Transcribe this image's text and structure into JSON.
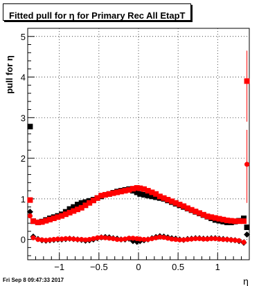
{
  "title": "Fitted pull for  η for Primary Rec All EtapT",
  "footer": "Fri Sep  8 09:47:33 2017",
  "chart_data": {
    "type": "scatter",
    "title": "Fitted pull for  η for Primary Rec All EtapT",
    "xlabel": "η",
    "ylabel": "pull for  η",
    "xlim": [
      -1.4,
      1.4
    ],
    "ylim": [
      -0.5,
      5.2
    ],
    "grid": true,
    "xticks": [
      -1,
      -0.5,
      0,
      0.5,
      1
    ],
    "xtick_labels": [
      "−1",
      "−0.5",
      "0",
      "0.5",
      "1"
    ],
    "yticks": [
      0,
      1,
      2,
      3,
      4,
      5
    ],
    "ytick_labels": [
      "0",
      "1",
      "2",
      "3",
      "4",
      "5"
    ],
    "colors": {
      "series_a": "#000000",
      "series_b": "#ff0000"
    },
    "series": [
      {
        "marker": "square",
        "color": "#000000",
        "x": [
          -1.37,
          -1.33,
          -1.27,
          -1.22,
          -1.17,
          -1.12,
          -1.07,
          -1.02,
          -0.97,
          -0.92,
          -0.87,
          -0.82,
          -0.77,
          -0.72,
          -0.67,
          -0.62,
          -0.57,
          -0.52,
          -0.47,
          -0.42,
          -0.37,
          -0.32,
          -0.27,
          -0.22,
          -0.17,
          -0.12,
          -0.07,
          -0.02,
          0.02,
          0.07,
          0.12,
          0.17,
          0.22,
          0.27,
          0.32,
          0.37,
          0.42,
          0.47,
          0.52,
          0.57,
          0.62,
          0.67,
          0.72,
          0.77,
          0.82,
          0.87,
          0.92,
          0.97,
          1.02,
          1.07,
          1.12,
          1.17,
          1.22,
          1.27,
          1.33,
          1.37
        ],
        "y": [
          2.78,
          0.45,
          0.42,
          0.44,
          0.48,
          0.52,
          0.55,
          0.58,
          0.62,
          0.68,
          0.75,
          0.8,
          0.86,
          0.9,
          0.92,
          0.95,
          0.98,
          1.02,
          1.06,
          1.1,
          1.12,
          1.15,
          1.18,
          1.2,
          1.22,
          1.24,
          1.2,
          1.16,
          1.12,
          1.1,
          1.08,
          1.06,
          1.04,
          1.02,
          1.0,
          0.96,
          0.92,
          0.88,
          0.84,
          0.8,
          0.76,
          0.72,
          0.68,
          0.64,
          0.6,
          0.56,
          0.52,
          0.48,
          0.46,
          0.44,
          0.42,
          0.42,
          0.44,
          0.46,
          0.52,
          0.3
        ]
      },
      {
        "marker": "diamond",
        "color": "#000000",
        "x": [
          -1.37,
          -1.33,
          -1.27,
          -1.22,
          -1.17,
          -1.12,
          -1.07,
          -1.02,
          -0.97,
          -0.92,
          -0.87,
          -0.82,
          -0.77,
          -0.72,
          -0.67,
          -0.62,
          -0.57,
          -0.52,
          -0.47,
          -0.42,
          -0.37,
          -0.32,
          -0.27,
          -0.22,
          -0.17,
          -0.12,
          -0.07,
          -0.02,
          0.02,
          0.07,
          0.12,
          0.17,
          0.22,
          0.27,
          0.32,
          0.37,
          0.42,
          0.47,
          0.52,
          0.57,
          0.62,
          0.67,
          0.72,
          0.77,
          0.82,
          0.87,
          0.92,
          0.97,
          1.02,
          1.07,
          1.12,
          1.17,
          1.22,
          1.27,
          1.33,
          1.37
        ],
        "y": [
          0.68,
          0.07,
          0.01,
          -0.02,
          -0.03,
          -0.02,
          -0.01,
          0.0,
          0.0,
          0.01,
          0.02,
          0.01,
          0.0,
          -0.01,
          -0.03,
          -0.02,
          0.0,
          0.03,
          0.05,
          0.06,
          0.05,
          0.03,
          0.02,
          0.0,
          0.0,
          0.02,
          -0.04,
          -0.06,
          -0.04,
          -0.02,
          0.0,
          0.03,
          0.06,
          0.08,
          0.07,
          0.05,
          0.03,
          0.02,
          0.0,
          -0.01,
          0.01,
          0.02,
          0.03,
          0.03,
          0.02,
          0.02,
          0.03,
          0.03,
          0.02,
          0.01,
          0.0,
          -0.01,
          -0.02,
          -0.04,
          -0.08,
          0.12
        ]
      },
      {
        "marker": "square",
        "color": "#ff0000",
        "x": [
          -1.37,
          -1.33,
          -1.27,
          -1.22,
          -1.17,
          -1.12,
          -1.07,
          -1.02,
          -0.97,
          -0.92,
          -0.87,
          -0.82,
          -0.77,
          -0.72,
          -0.67,
          -0.62,
          -0.57,
          -0.52,
          -0.47,
          -0.42,
          -0.37,
          -0.32,
          -0.27,
          -0.22,
          -0.17,
          -0.12,
          -0.07,
          -0.02,
          0.02,
          0.07,
          0.12,
          0.17,
          0.22,
          0.27,
          0.32,
          0.37,
          0.42,
          0.47,
          0.52,
          0.57,
          0.62,
          0.67,
          0.72,
          0.77,
          0.82,
          0.87,
          0.92,
          0.97,
          1.02,
          1.07,
          1.12,
          1.17,
          1.22,
          1.27,
          1.33,
          1.37
        ],
        "y": [
          0.97,
          0.45,
          0.42,
          0.43,
          0.46,
          0.49,
          0.52,
          0.55,
          0.58,
          0.62,
          0.66,
          0.7,
          0.74,
          0.78,
          0.84,
          0.9,
          0.96,
          1.02,
          1.08,
          1.1,
          1.12,
          1.14,
          1.16,
          1.18,
          1.2,
          1.22,
          1.25,
          1.27,
          1.26,
          1.24,
          1.2,
          1.16,
          1.12,
          1.06,
          1.02,
          0.98,
          0.94,
          0.9,
          0.86,
          0.82,
          0.77,
          0.73,
          0.69,
          0.65,
          0.61,
          0.57,
          0.55,
          0.53,
          0.51,
          0.49,
          0.47,
          0.46,
          0.45,
          0.45,
          0.45,
          3.9
        ],
        "error_bars": [
          {
            "x": 1.37,
            "low": 2.9,
            "high": 4.65
          }
        ]
      },
      {
        "marker": "circle",
        "color": "#ff0000",
        "x": [
          -1.37,
          -1.33,
          -1.27,
          -1.22,
          -1.17,
          -1.12,
          -1.07,
          -1.02,
          -0.97,
          -0.92,
          -0.87,
          -0.82,
          -0.77,
          -0.72,
          -0.67,
          -0.62,
          -0.57,
          -0.52,
          -0.47,
          -0.42,
          -0.37,
          -0.32,
          -0.27,
          -0.22,
          -0.17,
          -0.12,
          -0.07,
          -0.02,
          0.02,
          0.07,
          0.12,
          0.17,
          0.22,
          0.27,
          0.32,
          0.37,
          0.42,
          0.47,
          0.52,
          0.57,
          0.62,
          0.67,
          0.72,
          0.77,
          0.82,
          0.87,
          0.92,
          0.97,
          1.02,
          1.07,
          1.12,
          1.17,
          1.22,
          1.27,
          1.33,
          1.37
        ],
        "y": [
          0.58,
          0.04,
          0.0,
          -0.01,
          -0.02,
          -0.01,
          0.0,
          0.01,
          0.01,
          0.02,
          0.02,
          0.01,
          0.0,
          0.0,
          -0.01,
          0.0,
          0.02,
          0.04,
          0.05,
          0.04,
          0.03,
          0.02,
          0.0,
          0.0,
          0.01,
          0.03,
          0.03,
          0.02,
          0.01,
          0.0,
          0.0,
          0.02,
          0.04,
          0.06,
          0.05,
          0.03,
          0.01,
          0.0,
          -0.01,
          -0.01,
          0.0,
          0.01,
          0.02,
          0.02,
          0.01,
          0.01,
          0.02,
          0.02,
          0.01,
          0.0,
          0.0,
          -0.01,
          -0.02,
          -0.03,
          -0.07,
          1.85
        ],
        "error_bars": [
          {
            "x": 1.37,
            "low": 0.9,
            "high": 2.7
          }
        ]
      }
    ]
  }
}
